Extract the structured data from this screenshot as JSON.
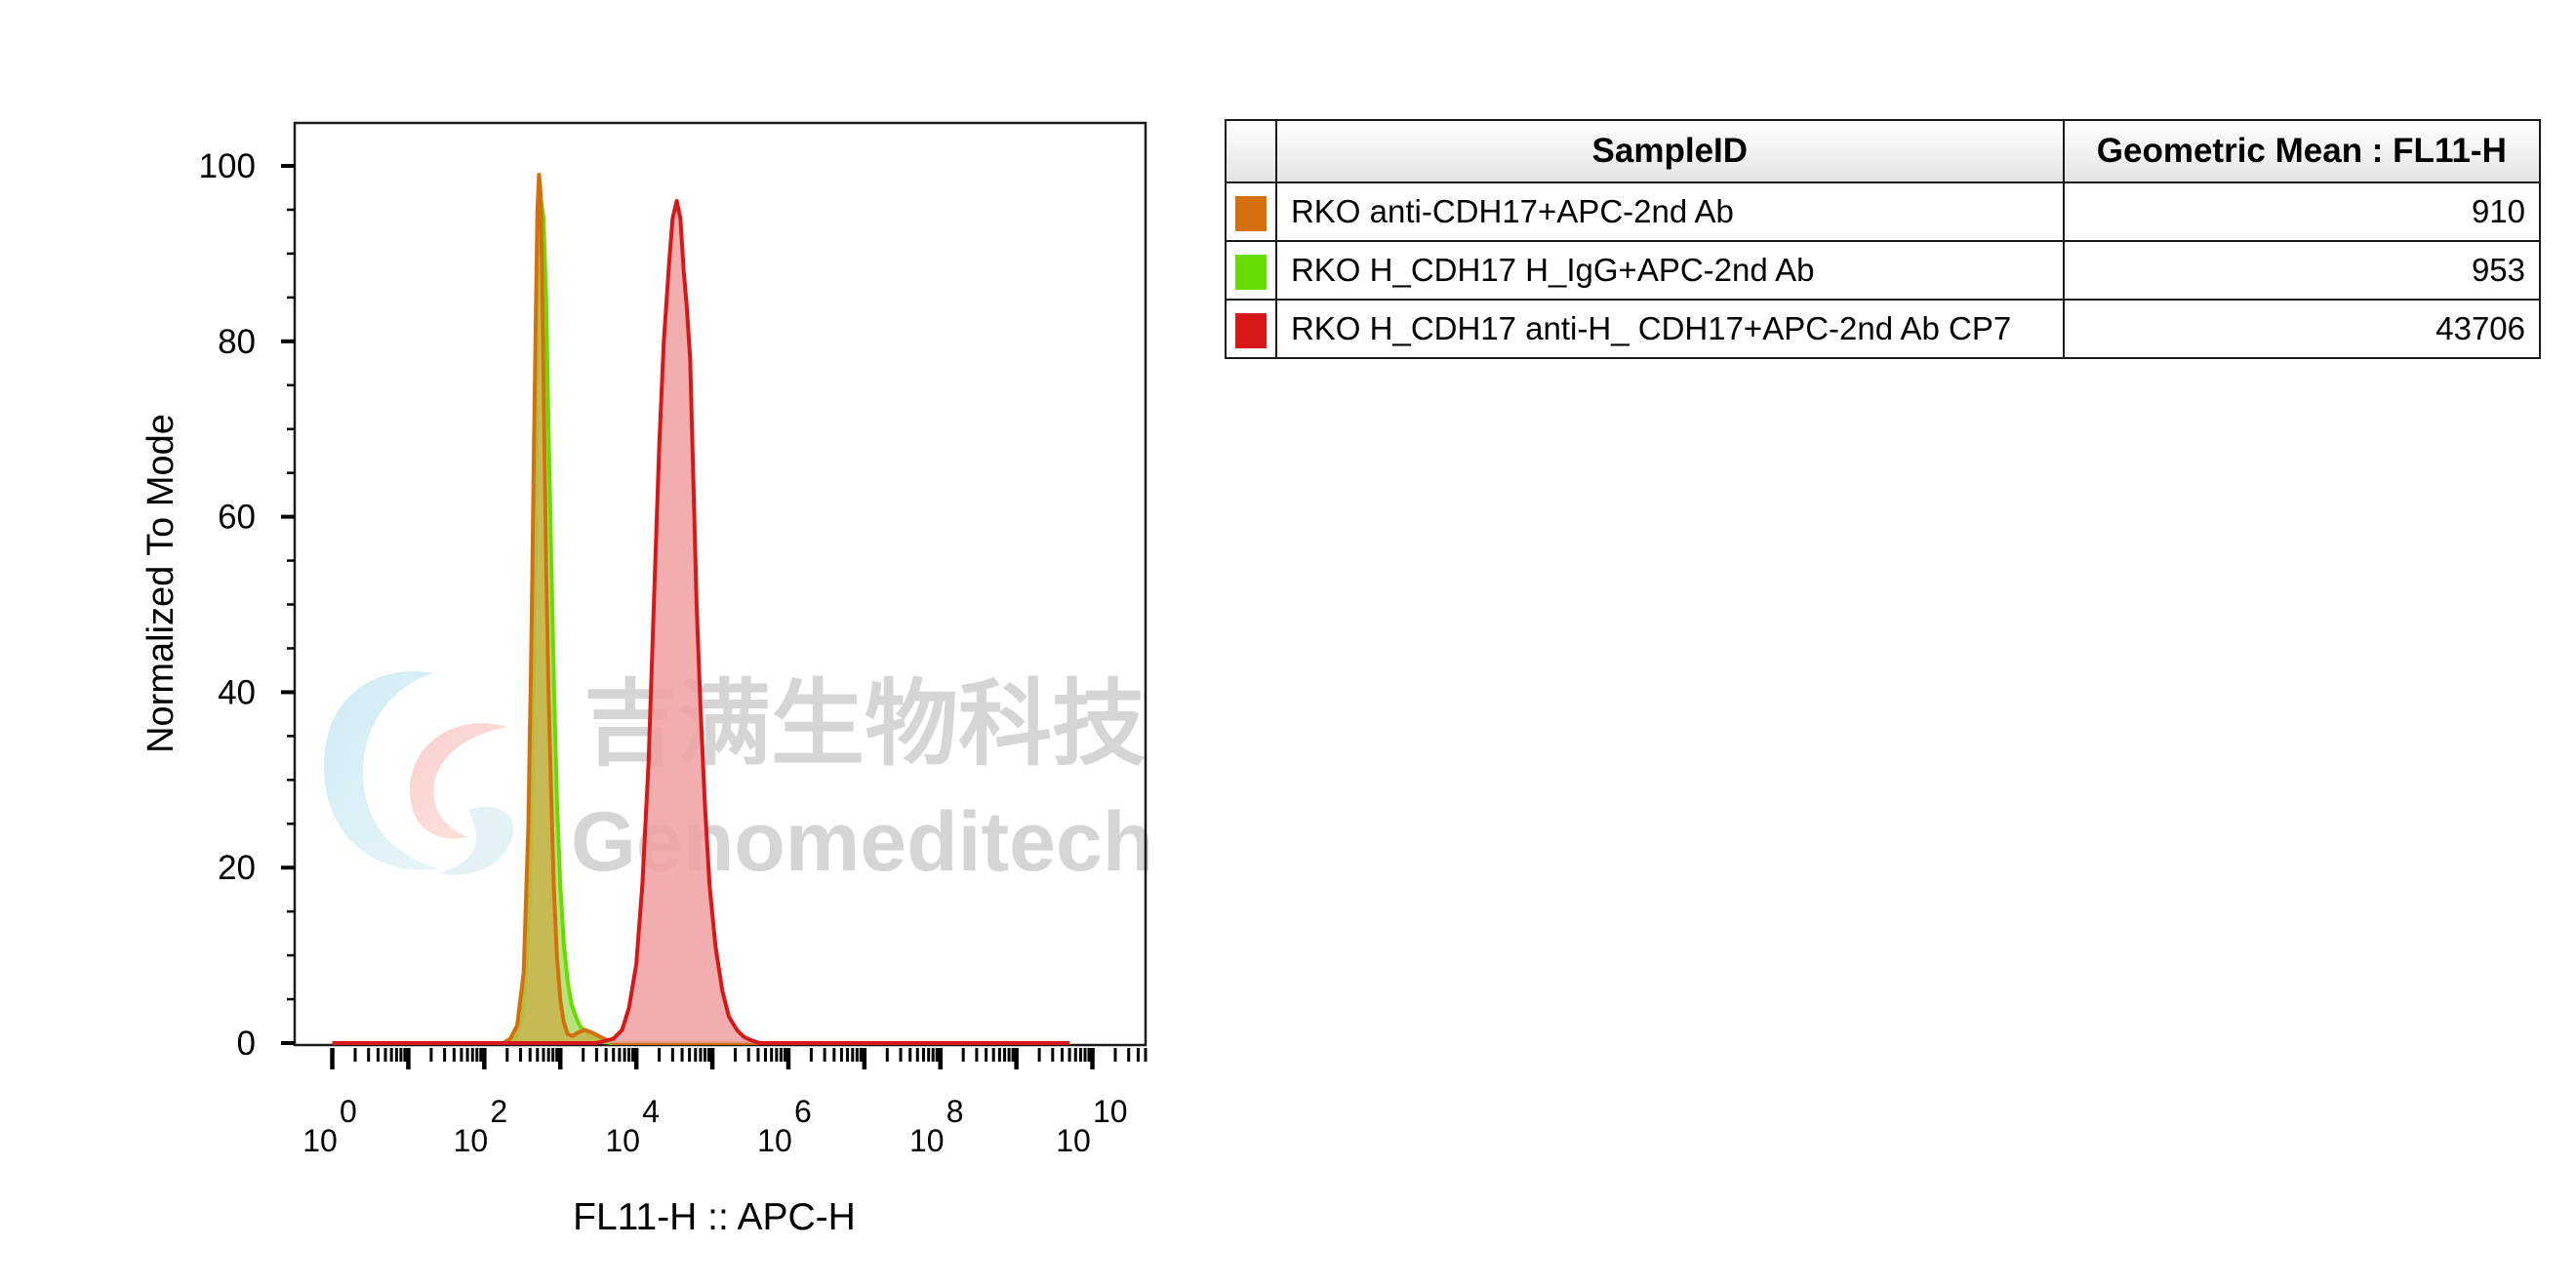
{
  "chart_data": {
    "type": "area",
    "xlabel": "FL11-H :: APC-H",
    "ylabel": "Normalized To Mode",
    "xscale": "log10",
    "xlim": [
      0.32,
      50000000000
    ],
    "ylim": [
      0,
      100
    ],
    "y_ticks": [
      "0",
      "20",
      "40",
      "60",
      "80",
      "100"
    ],
    "x_ticks": [
      {
        "base": "10",
        "exp": "0"
      },
      {
        "base": "10",
        "exp": "2"
      },
      {
        "base": "10",
        "exp": "4"
      },
      {
        "base": "10",
        "exp": "6"
      },
      {
        "base": "10",
        "exp": "8"
      },
      {
        "base": "10",
        "exp": "10"
      }
    ],
    "series": [
      {
        "name": "RKO H_CDH17 H_IgG+APC-2nd Ab",
        "color": "#66dd00",
        "fill": "#aadd66",
        "x": [
          1.0,
          178,
          250,
          320,
          380,
          430,
          470,
          500,
          530,
          560,
          600,
          650,
          700,
          760,
          830,
          900,
          1000,
          1120,
          1250,
          1400,
          1600,
          1800,
          2000,
          2400,
          2900,
          3600,
          4600,
          5000000000
        ],
        "y": [
          0,
          0,
          0.5,
          3,
          12,
          30,
          55,
          78,
          92,
          96,
          94,
          85,
          70,
          55,
          40,
          28,
          18,
          11,
          7,
          4.5,
          3,
          2,
          1.5,
          1,
          0.6,
          0.2,
          0,
          0
        ]
      },
      {
        "name": "RKO anti-CDH17+APC-2nd Ab",
        "color": "#d4700c",
        "fill": "#c8b44a",
        "x": [
          1.0,
          178,
          220,
          270,
          330,
          380,
          420,
          450,
          480,
          500,
          525,
          550,
          575,
          610,
          650,
          700,
          760,
          820,
          900,
          1000,
          1100,
          1250,
          1450,
          1700,
          2100,
          2600,
          3200,
          4000,
          5000,
          5000000000
        ],
        "y": [
          0,
          0,
          0.5,
          2,
          8,
          25,
          48,
          68,
          85,
          95,
          99,
          97,
          88,
          72,
          55,
          40,
          28,
          18,
          10,
          5,
          2.5,
          1,
          0.8,
          1.2,
          1.5,
          1.2,
          0.8,
          0.4,
          0,
          0
        ]
      },
      {
        "name": "RKO H_CDH17 anti-H_ CDH17+APC-2nd Ab CP7",
        "color": "#d81818",
        "fill": "#f0a0a0",
        "x": [
          1.0,
          3000,
          5000,
          6500,
          8000,
          10000,
          12000,
          14500,
          17000,
          20000,
          23000,
          27000,
          30000,
          34000,
          38000,
          42000,
          46000,
          51000,
          56000,
          62000,
          70000,
          80000,
          92000,
          110000,
          135000,
          165000,
          210000,
          260000,
          330000,
          420000,
          5000000000
        ],
        "y": [
          0,
          0,
          0.5,
          1.5,
          4,
          9,
          18,
          32,
          50,
          68,
          80,
          89,
          94,
          96,
          94,
          88,
          84,
          78,
          65,
          50,
          38,
          27,
          18,
          11,
          6,
          3,
          1.5,
          0.7,
          0.3,
          0,
          0
        ]
      }
    ]
  },
  "legend_table": {
    "headers": [
      "SampleID",
      "Geometric Mean : FL11-H"
    ],
    "rows": [
      {
        "color": "#d4700c",
        "sample": "RKO anti-CDH17+APC-2nd Ab",
        "value": "910"
      },
      {
        "color": "#66dd00",
        "sample": "RKO H_CDH17 H_IgG+APC-2nd Ab",
        "value": "953"
      },
      {
        "color": "#d81818",
        "sample": "RKO H_CDH17 anti-H_ CDH17+APC-2nd Ab CP7",
        "value": "43706"
      }
    ]
  },
  "watermark": {
    "cn": "吉满生物科技",
    "en": "Genomeditech"
  }
}
